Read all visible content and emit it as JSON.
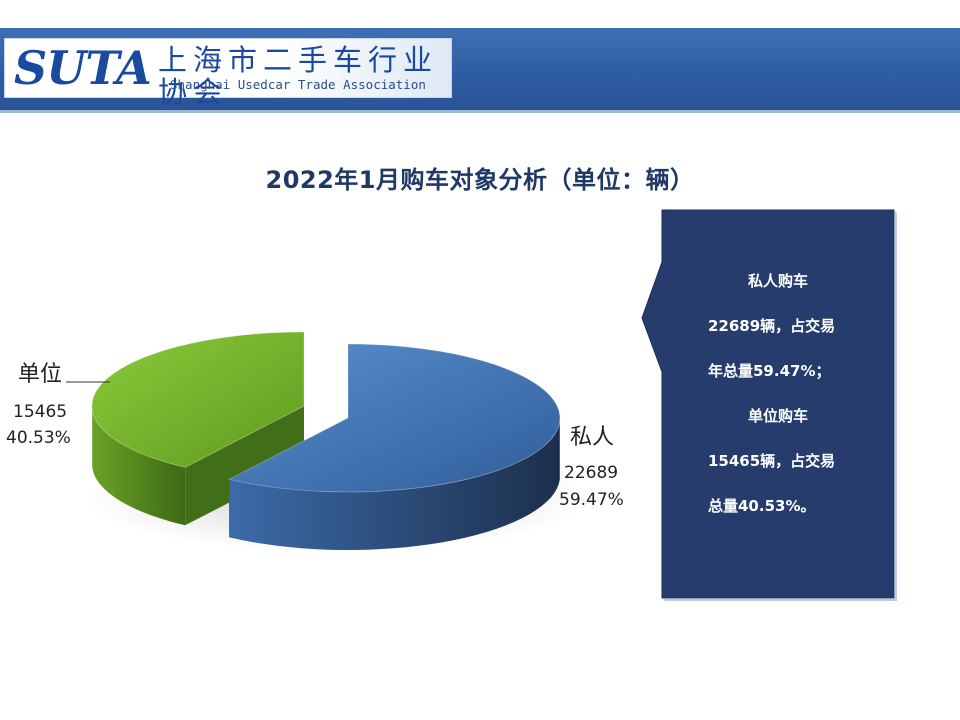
{
  "header": {
    "logo_text": "SUTA",
    "org_name_cn": "上海市二手车行业协会",
    "org_name_en": "Shanghai Usedcar Trade Association"
  },
  "chart_data": {
    "type": "pie",
    "title": "2022年1月购车对象分析（单位：辆）",
    "slices": [
      {
        "name": "私人",
        "value": 22689,
        "percent": "59.47%",
        "color": "#3d6fae"
      },
      {
        "name": "单位",
        "value": 15465,
        "percent": "40.53%",
        "color": "#7ab82e"
      }
    ]
  },
  "callout": {
    "lines": [
      "私人购车",
      "22689辆，占交易",
      "年总量59.47%；",
      "单位购车",
      "15465辆，占交易",
      "总量40.53%。"
    ],
    "background": "#253c6c"
  }
}
